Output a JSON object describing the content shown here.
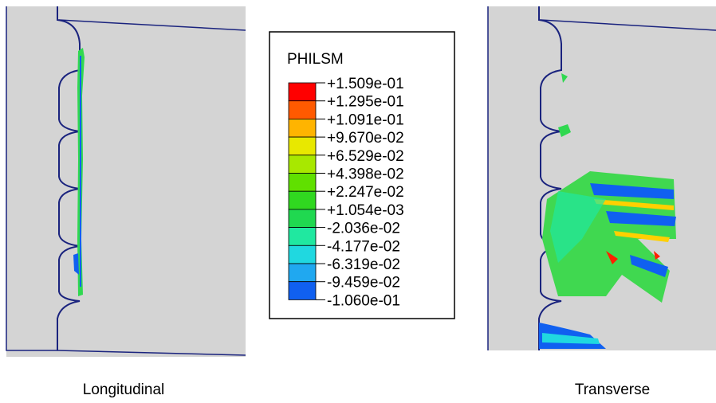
{
  "legend": {
    "title": "PHILSM",
    "labels": [
      "+1.509e-01",
      "+1.295e-01",
      "+1.091e-01",
      "+9.670e-02",
      "+6.529e-02",
      "+4.398e-02",
      "+2.247e-02",
      "+1.054e-03",
      "-2.036e-02",
      "-4.177e-02",
      "-6.319e-02",
      "-9.459e-02",
      "-1.060e-01"
    ],
    "colors": [
      "#ff0000",
      "#ff5a00",
      "#ffb400",
      "#e8e800",
      "#a8e800",
      "#60e000",
      "#30d820",
      "#20d850",
      "#20e8a0",
      "#20d8e0",
      "#20a8f0",
      "#1060f0",
      "#0000e0"
    ]
  },
  "panels": [
    {
      "caption": "Longitudinal"
    },
    {
      "caption": "Transverse"
    }
  ]
}
